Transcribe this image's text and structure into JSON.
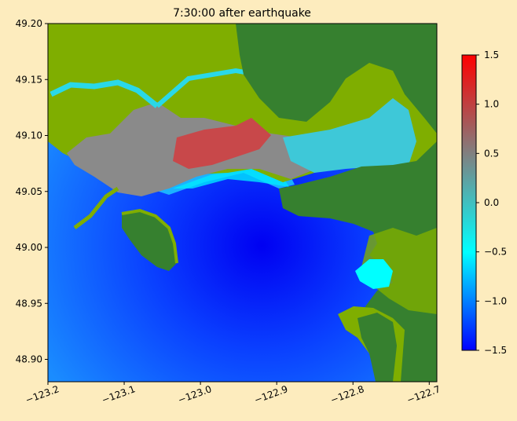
{
  "chart_data": {
    "type": "heatmap",
    "title": "7:30:00 after earthquake",
    "xlim": [
      -123.2,
      -122.69
    ],
    "ylim": [
      48.88,
      49.2
    ],
    "x_ticks": [
      -123.2,
      -123.1,
      -123.0,
      -122.9,
      -122.8,
      -122.7
    ],
    "x_tick_labels": [
      "−123.2",
      "−123.1",
      "−123.0",
      "−122.9",
      "−122.8",
      "−122.7"
    ],
    "y_ticks": [
      48.9,
      48.95,
      49.0,
      49.05,
      49.1,
      49.15,
      49.2
    ],
    "y_tick_labels": [
      "48.90",
      "48.95",
      "49.00",
      "49.05",
      "49.10",
      "49.15",
      "49.20"
    ],
    "colorbar": {
      "range": [
        -1.5,
        1.5
      ],
      "ticks": [
        -1.5,
        -1.0,
        -0.5,
        0.0,
        0.5,
        1.0,
        1.5
      ],
      "tick_labels": [
        "−1.5",
        "−1.0",
        "−0.5",
        "0.0",
        "0.5",
        "1.0",
        "1.5"
      ],
      "colors": [
        "#0000ff",
        "#00ffff",
        "#808080",
        "#ff0000"
      ]
    },
    "land_colors": {
      "low_land": "#7fae00",
      "high_land": "#36802f"
    },
    "grid": false
  }
}
